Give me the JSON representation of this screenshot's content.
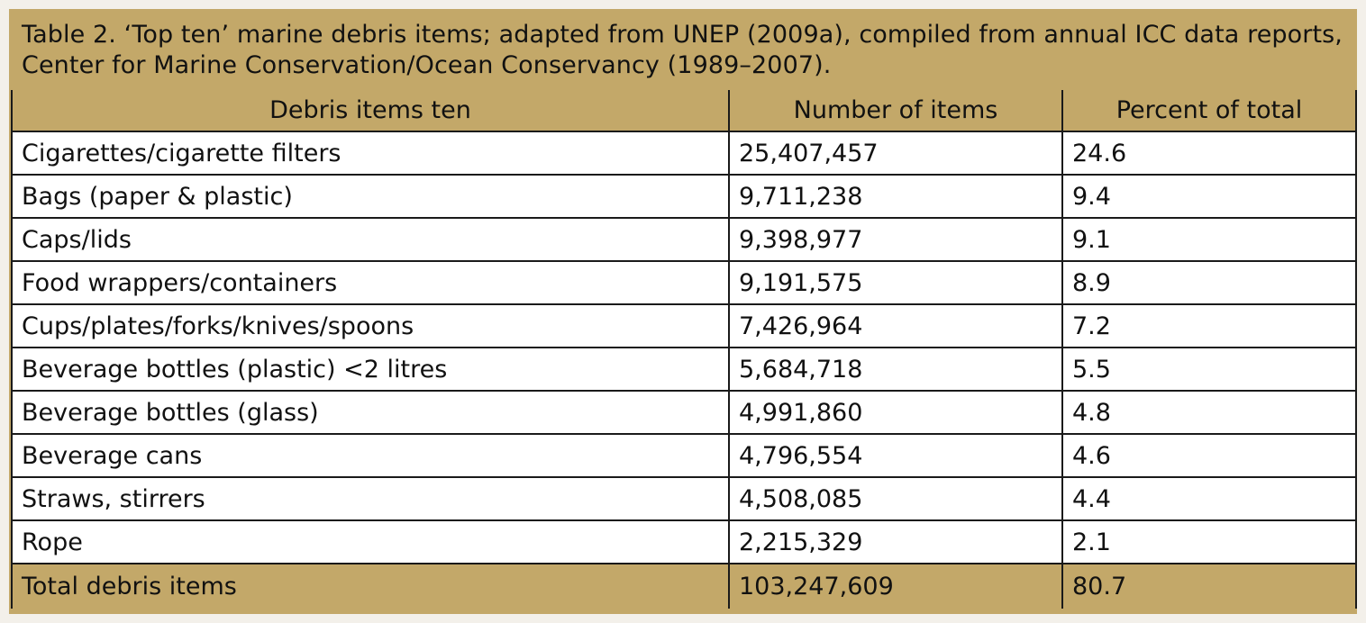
{
  "caption": "Table 2. ‘Top ten’ marine debris items; adapted from UNEP (2009a), compiled from annual ICC data reports, Center for Marine Conservation/Ocean Conservancy (1989–2007).",
  "columns": [
    "Debris items ten",
    "Number of items",
    "Percent of total"
  ],
  "rows": [
    {
      "item": "Cigarettes/cigarette filters",
      "number": "25,407,457",
      "percent": "24.6"
    },
    {
      "item": "Bags (paper & plastic)",
      "number": "9,711,238",
      "percent": "9.4"
    },
    {
      "item": "Caps/lids",
      "number": "9,398,977",
      "percent": "9.1"
    },
    {
      "item": "Food wrappers/containers",
      "number": "9,191,575",
      "percent": "8.9"
    },
    {
      "item": "Cups/plates/forks/knives/spoons",
      "number": "7,426,964",
      "percent": "7.2"
    },
    {
      "item": "Beverage bottles (plastic) <2 litres",
      "number": "5,684,718",
      "percent": "5.5"
    },
    {
      "item": "Beverage bottles (glass)",
      "number": "4,991,860",
      "percent": "4.8"
    },
    {
      "item": "Beverage cans",
      "number": "4,796,554",
      "percent": "4.6"
    },
    {
      "item": "Straws, stirrers",
      "number": "4,508,085",
      "percent": "4.4"
    },
    {
      "item": "Rope",
      "number": "2,215,329",
      "percent": "2.1"
    }
  ],
  "total": {
    "item": "Total debris items",
    "number": "103,247,609",
    "percent": "80.7"
  },
  "colors": {
    "header_bg": "#c3a869",
    "body_bg": "#ffffff",
    "border": "#1a1a1a"
  }
}
